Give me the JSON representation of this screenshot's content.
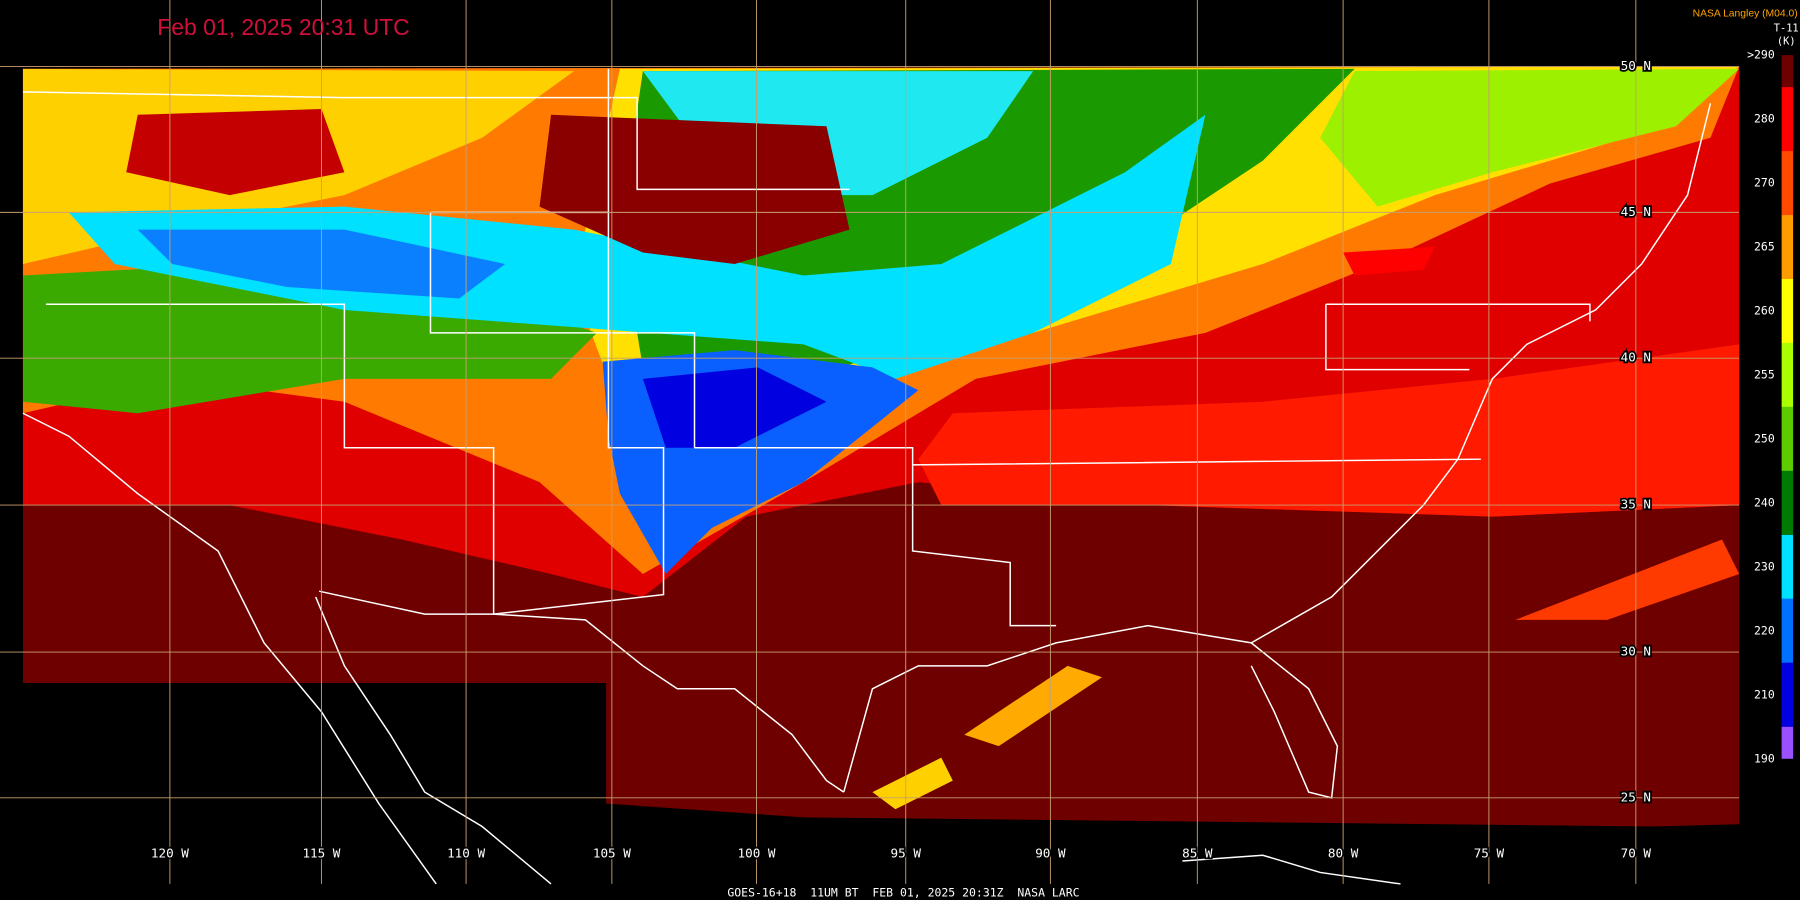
{
  "header": {
    "timestamp": "Feb 01, 2025 20:31 UTC",
    "provider": "NASA Langley (M04.0)"
  },
  "legend": {
    "title": "T-11",
    "unit": "(K)",
    "labels": [
      ">290",
      "280",
      "270",
      "265",
      "260",
      "255",
      "250",
      "240",
      "230",
      "220",
      "210",
      "190"
    ],
    "colors": [
      "#6e0000",
      "#ff0000",
      "#ff4a00",
      "#ff9a00",
      "#ffff00",
      "#aaff00",
      "#5ccc00",
      "#007a00",
      "#00e0ff",
      "#0070ff",
      "#0000e0",
      "#9a50ff"
    ]
  },
  "latitudes": [
    "50 N",
    "45 N",
    "40 N",
    "35 N",
    "30 N",
    "25 N"
  ],
  "longitudes": [
    "120 W",
    "115 W",
    "110 W",
    "105 W",
    "100 W",
    "95 W",
    "90 W",
    "85 W",
    "80 W",
    "75 W",
    "70 W"
  ],
  "footer": "GOES-16+18  11UM BT  FEB 01, 2025 20:31Z  NASA LARC"
}
